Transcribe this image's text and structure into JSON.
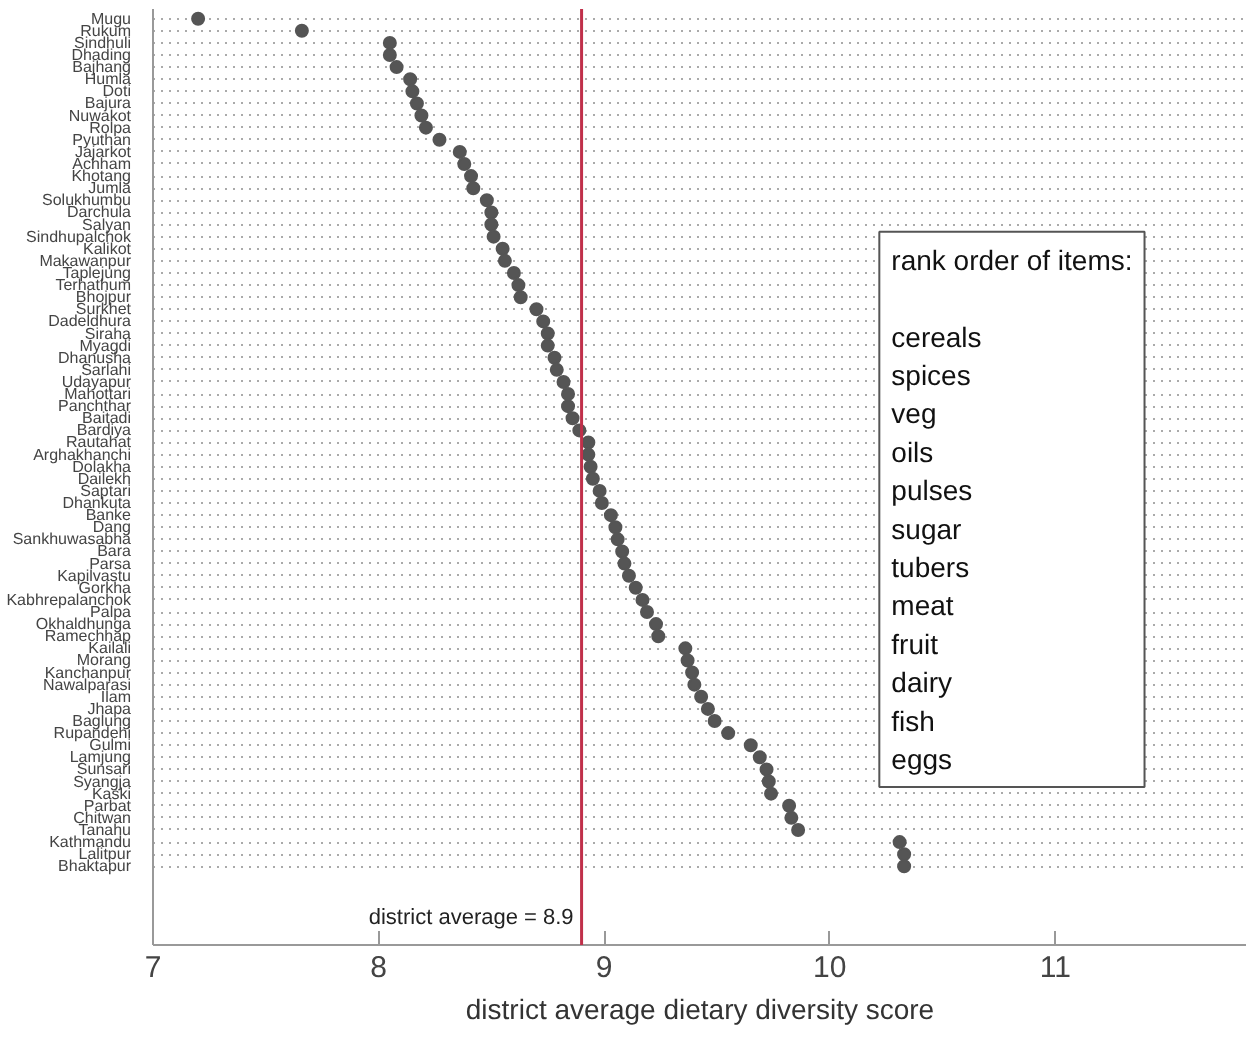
{
  "chart_data": {
    "type": "scatter",
    "orientation": "horizontal",
    "xlabel": "district average dietary diversity score",
    "categories": [
      "Mugu",
      "Rukum",
      "Sindhuli",
      "Dhading",
      "Bajhang",
      "Humla",
      "Doti",
      "Bajura",
      "Nuwakot",
      "Rolpa",
      "Pyuthan",
      "Jajarkot",
      "Achham",
      "Khotang",
      "Jumla",
      "Solukhumbu",
      "Darchula",
      "Salyan",
      "Sindhupalchok",
      "Kalikot",
      "Makawanpur",
      "Taplejung",
      "Terhathum",
      "Bhojpur",
      "Surkhet",
      "Dadeldhura",
      "Siraha",
      "Myagdi",
      "Dhanusha",
      "Sarlahi",
      "Udayapur",
      "Mahottari",
      "Panchthar",
      "Baitadi",
      "Bardiya",
      "Rautahat",
      "Arghakhanchi",
      "Dolakha",
      "Dailekh",
      "Saptari",
      "Dhankuta",
      "Banke",
      "Dang",
      "Sankhuwasabha",
      "Bara",
      "Parsa",
      "Kapilvastu",
      "Gorkha",
      "Kabhrepalanchok",
      "Palpa",
      "Okhaldhunga",
      "Ramechhap",
      "Kailali",
      "Morang",
      "Kanchanpur",
      "Nawalparasi",
      "Ilam",
      "Jhapa",
      "Baglung",
      "Rupandehi",
      "Gulmi",
      "Lamjung",
      "Sunsari",
      "Syangja",
      "Kaski",
      "Parbat",
      "Chitwan",
      "Tanahu",
      "Kathmandu",
      "Lalitpur",
      "Bhaktapur"
    ],
    "values": [
      7.2,
      7.66,
      8.05,
      8.05,
      8.08,
      8.14,
      8.15,
      8.17,
      8.19,
      8.21,
      8.27,
      8.36,
      8.38,
      8.41,
      8.42,
      8.48,
      8.5,
      8.5,
      8.51,
      8.55,
      8.56,
      8.6,
      8.62,
      8.63,
      8.7,
      8.73,
      8.75,
      8.75,
      8.78,
      8.79,
      8.82,
      8.84,
      8.84,
      8.86,
      8.89,
      8.93,
      8.93,
      8.94,
      8.95,
      8.98,
      8.99,
      9.03,
      9.05,
      9.06,
      9.08,
      9.09,
      9.11,
      9.14,
      9.17,
      9.19,
      9.23,
      9.24,
      9.36,
      9.37,
      9.39,
      9.4,
      9.43,
      9.46,
      9.49,
      9.55,
      9.65,
      9.69,
      9.72,
      9.73,
      9.74,
      9.82,
      9.83,
      9.86,
      10.31,
      10.33,
      10.33
    ],
    "color": "#555555",
    "marker": "circle",
    "xlim": [
      7,
      11.85
    ],
    "xticks": [
      7,
      8,
      9,
      10,
      11
    ],
    "grid": "y",
    "ref_lines": [
      {
        "axis": "x",
        "value": 8.9,
        "label": "district average = 8.9",
        "color": "#c0304a"
      }
    ],
    "annotations": [
      "rank order of items:\n\n  cereals\n  spices\n  veg\n  oils\n  pulses\n  sugar\n  tubers\n  meat\n  fruit\n  dairy\n  fish\n  eggs"
    ]
  }
}
